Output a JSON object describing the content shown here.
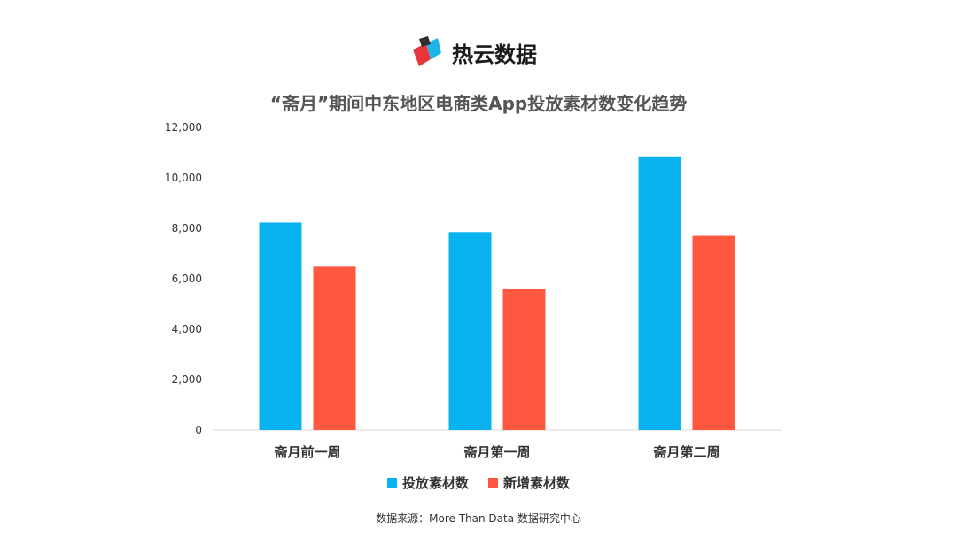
{
  "brand": {
    "name": "热云数据",
    "colors": [
      "#e8343a",
      "#2f2f2f",
      "#1fb4e8"
    ]
  },
  "chart_data": {
    "type": "bar",
    "title": "“斋月”期间中东地区电商类App投放素材数变化趋势",
    "categories": [
      "斋月前一周",
      "斋月第一周",
      "斋月第二周"
    ],
    "series": [
      {
        "name": "投放素材数",
        "color": "#08b3ef",
        "values": [
          8230,
          7850,
          10850
        ]
      },
      {
        "name": "新增素材数",
        "color": "#ff5740",
        "values": [
          6480,
          5580,
          7700
        ]
      }
    ],
    "ylim": [
      0,
      12000
    ],
    "yticks": [
      0,
      2000,
      4000,
      6000,
      8000,
      10000,
      12000
    ],
    "ytick_labels": [
      "0",
      "2,000",
      "4,000",
      "6,000",
      "8,000",
      "10,000",
      "12,000"
    ],
    "xlabel": "",
    "ylabel": "",
    "grid": false,
    "legend_position": "bottom"
  },
  "source": "数据来源：More Than Data 数据研究中心"
}
